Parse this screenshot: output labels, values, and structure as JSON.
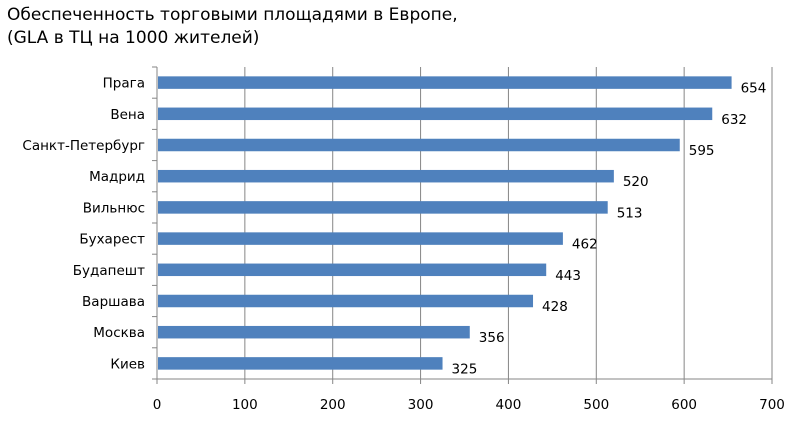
{
  "chart_data": {
    "type": "bar",
    "orientation": "horizontal",
    "title": [
      "Обеспеченность торговыми площадями в Европе,",
      "(GLA в ТЦ на 1000 жителей)"
    ],
    "categories": [
      "Прага",
      "Вена",
      "Санкт-Петербург",
      "Мадрид",
      "Вильнюс",
      "Бухарест",
      "Будапешт",
      "Варшава",
      "Москва",
      "Киев"
    ],
    "values": [
      654,
      632,
      595,
      520,
      513,
      462,
      443,
      428,
      356,
      325
    ],
    "xlim": [
      0,
      700
    ],
    "xticks": [
      "0",
      "100",
      "200",
      "300",
      "400",
      "500",
      "600",
      "700"
    ],
    "xlabel": "",
    "ylabel": "",
    "grid": "vertical",
    "legend": "none",
    "data_labels": true,
    "colors": {
      "bar": "#4F81BD",
      "grid": "#868686"
    }
  }
}
